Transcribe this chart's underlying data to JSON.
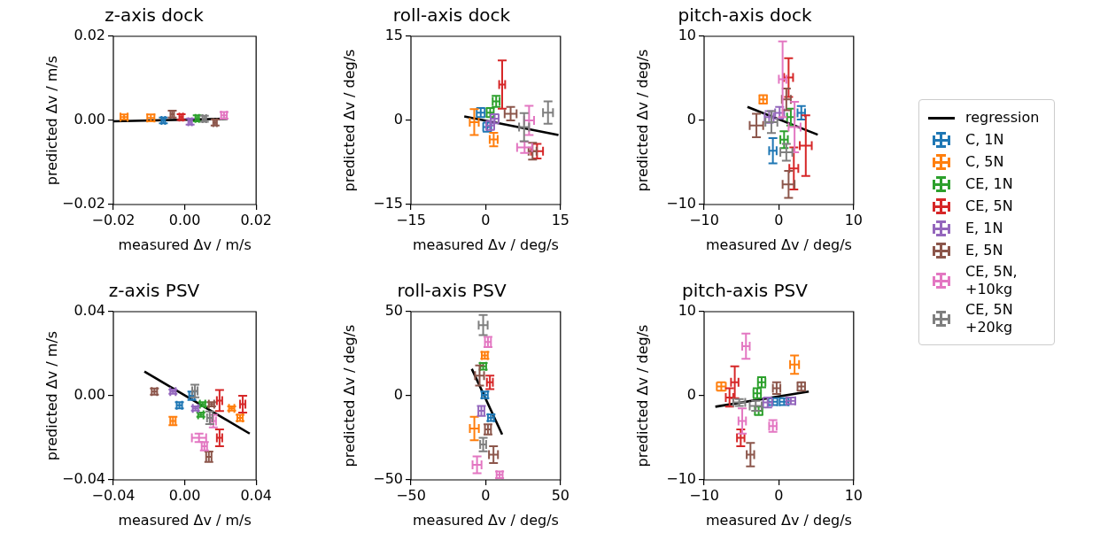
{
  "chart_data": [
    {
      "type": "scatter",
      "title": "z-axis dock",
      "xlabel": "measured Δv / m/s",
      "ylabel": "predicted Δv / m/s",
      "xlim": [
        -0.02,
        0.02
      ],
      "ylim": [
        -0.02,
        0.02
      ],
      "xticks": [
        {
          "value": -0.02,
          "label": "−0.02"
        },
        {
          "value": 0,
          "label": "0.00"
        },
        {
          "value": 0.02,
          "label": "0.02"
        }
      ],
      "yticks": [
        {
          "value": -0.02,
          "label": "−0.02"
        },
        {
          "value": 0,
          "label": "0.00"
        },
        {
          "value": 0.02,
          "label": "0.02"
        }
      ],
      "legend": "right",
      "series": [
        {
          "name": "regression",
          "type": "line",
          "color": "#000000",
          "x": [
            -0.02,
            0.012
          ],
          "values": [
            -0.0002,
            0.0004
          ]
        },
        {
          "name": "C, 1N",
          "color": "#1f77b4",
          "x": [
            -0.006
          ],
          "values": [
            0
          ],
          "errors": [
            0.0007
          ],
          "xerrors": [
            0.0005
          ]
        },
        {
          "name": "C, 5N",
          "color": "#ff7f0e",
          "x": [
            -0.017,
            -0.0095
          ],
          "values": [
            0.0008,
            0.0006
          ],
          "errors": [
            0.0006,
            0.0008
          ],
          "xerrors": [
            0.001,
            0.001
          ]
        },
        {
          "name": "CE, 1N",
          "color": "#2ca02c",
          "x": [
            0.0035
          ],
          "values": [
            0.0005
          ],
          "errors": [
            0.0007
          ],
          "xerrors": [
            0.0005
          ]
        },
        {
          "name": "CE, 5N",
          "color": "#d62728",
          "x": [
            -0.001
          ],
          "values": [
            0.0008
          ],
          "errors": [
            0.0007
          ],
          "xerrors": [
            0.0005
          ]
        },
        {
          "name": "E, 1N",
          "color": "#9467bd",
          "x": [
            0.0015
          ],
          "values": [
            -0.0003
          ],
          "errors": [
            0.0007
          ],
          "xerrors": [
            0.0005
          ]
        },
        {
          "name": "E, 5N",
          "color": "#8c564b",
          "x": [
            -0.0035,
            0.0085
          ],
          "values": [
            0.0015,
            -0.0005
          ],
          "errors": [
            0.0008,
            0.0007
          ],
          "xerrors": [
            0.0005,
            0.0005
          ]
        },
        {
          "name": "CE, 5N, +10kg",
          "color": "#e377c2",
          "x": [
            0.011
          ],
          "values": [
            0.0012
          ],
          "errors": [
            0.0008
          ],
          "xerrors": [
            0.0008
          ]
        },
        {
          "name": "CE, 5N +20kg",
          "color": "#7f7f7f",
          "x": [
            0.0055
          ],
          "values": [
            0.0004
          ],
          "errors": [
            0.0007
          ],
          "xerrors": [
            0.0005
          ]
        }
      ]
    },
    {
      "type": "scatter",
      "title": "roll-axis dock",
      "xlabel": "measured Δv / deg/s",
      "ylabel": "predicted Δv / deg/s",
      "xlim": [
        -15,
        15
      ],
      "ylim": [
        -15,
        15
      ],
      "xticks": [
        {
          "value": -15,
          "label": "−15"
        },
        0,
        15
      ],
      "yticks": [
        {
          "value": -15,
          "label": "−15"
        },
        0,
        15
      ],
      "series": [
        {
          "type": "line",
          "color": "#000000",
          "x": [
            -4.3,
            14.6
          ],
          "values": [
            0.7,
            -2.6
          ]
        },
        {
          "color": "#1f77b4",
          "x": [
            -1.0,
            0.3
          ],
          "values": [
            1.4,
            -1.2
          ],
          "errors": [
            0.8,
            0.8
          ],
          "xerrors": [
            0.8,
            0.8
          ]
        },
        {
          "color": "#ff7f0e",
          "x": [
            -2.3,
            1.6
          ],
          "values": [
            -0.3,
            -3.4
          ],
          "errors": [
            2.3,
            1.2
          ],
          "xerrors": [
            0.9,
            0.8
          ]
        },
        {
          "color": "#2ca02c",
          "x": [
            2.1,
            0.9
          ],
          "values": [
            3.4,
            1.4
          ],
          "errors": [
            1.0,
            0.8
          ],
          "xerrors": [
            0.7,
            0.7
          ]
        },
        {
          "color": "#d62728",
          "x": [
            3.3,
            10.3
          ],
          "values": [
            6.4,
            -5.5
          ],
          "errors": [
            4.3,
            1.3
          ],
          "xerrors": [
            0.6,
            1.2
          ]
        },
        {
          "color": "#9467bd",
          "x": [
            1.8,
            0.9
          ],
          "values": [
            0.3,
            -0.9
          ],
          "errors": [
            0.8,
            0.8
          ],
          "xerrors": [
            0.8,
            0.8
          ]
        },
        {
          "color": "#8c564b",
          "x": [
            5.0,
            9.4
          ],
          "values": [
            1.2,
            -5.5
          ],
          "errors": [
            1.2,
            1.5
          ],
          "xerrors": [
            1.2,
            0.8
          ]
        },
        {
          "color": "#e377c2",
          "x": [
            8.7,
            7.8
          ],
          "values": [
            0,
            -4.8
          ],
          "errors": [
            2.6,
            1.0
          ],
          "xerrors": [
            1.0,
            1.5
          ]
        },
        {
          "color": "#7f7f7f",
          "x": [
            12.5,
            7.7
          ],
          "values": [
            1.4,
            -1.2
          ],
          "errors": [
            2.0,
            2.5
          ],
          "xerrors": [
            1.0,
            1.0
          ]
        }
      ]
    },
    {
      "type": "scatter",
      "title": "pitch-axis dock",
      "xlabel": "measured Δv / deg/s",
      "ylabel": "predicted Δv / deg/s",
      "xlim": [
        -10,
        10
      ],
      "ylim": [
        -10,
        10
      ],
      "xticks": [
        {
          "value": -10,
          "label": "−10"
        },
        0,
        10
      ],
      "yticks": [
        {
          "value": -10,
          "label": "−10"
        },
        0,
        10
      ],
      "series": [
        {
          "type": "line",
          "color": "#000000",
          "x": [
            -4.2,
            5.2
          ],
          "values": [
            1.6,
            -1.7
          ]
        },
        {
          "color": "#1f77b4",
          "x": [
            3.0,
            -0.8
          ],
          "values": [
            0.9,
            -3.6
          ],
          "errors": [
            0.8,
            1.5
          ],
          "xerrors": [
            0.5,
            0.5
          ]
        },
        {
          "color": "#ff7f0e",
          "x": [
            -2.1
          ],
          "values": [
            2.5
          ],
          "errors": [
            0.5
          ],
          "xerrors": [
            0.5
          ]
        },
        {
          "color": "#2ca02c",
          "x": [
            1.6,
            0.7
          ],
          "values": [
            0.4,
            -2.3
          ],
          "errors": [
            1.0,
            1.0
          ],
          "xerrors": [
            0.5,
            0.5
          ]
        },
        {
          "color": "#d62728",
          "x": [
            1.3,
            3.6,
            2.0
          ],
          "values": [
            5.1,
            -3.0,
            -5.7
          ],
          "errors": [
            2.3,
            3.6,
            2.5
          ],
          "xerrors": [
            0.6,
            0.8,
            0.6
          ]
        },
        {
          "color": "#9467bd",
          "x": [
            -1.3,
            0.1
          ],
          "values": [
            0.4,
            0.9
          ],
          "errors": [
            0.7,
            0.7
          ],
          "xerrors": [
            0.6,
            0.6
          ]
        },
        {
          "color": "#8c564b",
          "x": [
            -3.0,
            1.0,
            1.3
          ],
          "values": [
            -0.6,
            2.5,
            -7.6
          ],
          "errors": [
            1.4,
            1.3,
            1.6
          ],
          "xerrors": [
            0.9,
            0.6,
            0.8
          ]
        },
        {
          "color": "#e377c2",
          "x": [
            0.5,
            2.1
          ],
          "values": [
            4.9,
            -0.8
          ],
          "errors": [
            4.5,
            3.0
          ],
          "xerrors": [
            0.5,
            0.8
          ]
        },
        {
          "color": "#7f7f7f",
          "x": [
            -1.0,
            1.0
          ],
          "values": [
            -0.2,
            -3.8
          ],
          "errors": [
            1.3,
            1.0
          ],
          "xerrors": [
            0.8,
            0.8
          ]
        }
      ]
    },
    {
      "type": "scatter",
      "title": "z-axis PSV",
      "xlabel": "measured Δv / m/s",
      "ylabel": "predicted Δv / m/s",
      "xlim": [
        -0.04,
        0.04
      ],
      "ylim": [
        -0.04,
        0.04
      ],
      "xticks": [
        {
          "value": -0.04,
          "label": "−0.04"
        },
        {
          "value": 0,
          "label": "0.00"
        },
        {
          "value": 0.04,
          "label": "0.04"
        }
      ],
      "yticks": [
        {
          "value": -0.04,
          "label": "−0.04"
        },
        {
          "value": 0,
          "label": "0.00"
        },
        {
          "value": 0.04,
          "label": "0.04"
        }
      ],
      "series": [
        {
          "type": "line",
          "color": "#000000",
          "x": [
            -0.0226,
            0.0364
          ],
          "values": [
            0.0115,
            -0.018
          ]
        },
        {
          "color": "#1f77b4",
          "x": [
            -0.003,
            0.004
          ],
          "values": [
            -0.0045,
            0
          ],
          "errors": [
            0.0015,
            0.002
          ],
          "xerrors": [
            0.0015,
            0.0015
          ]
        },
        {
          "color": "#ff7f0e",
          "x": [
            -0.0066,
            0.0263,
            0.031
          ],
          "values": [
            -0.012,
            -0.006,
            -0.0105
          ],
          "errors": [
            0.002,
            0.001,
            0.0015
          ],
          "xerrors": [
            0.0015,
            0.0015,
            0.0015
          ]
        },
        {
          "color": "#2ca02c",
          "x": [
            0.009,
            0.01
          ],
          "values": [
            -0.009,
            -0.004
          ],
          "errors": [
            0.001,
            0.001
          ],
          "xerrors": [
            0.0015,
            0.0015
          ]
        },
        {
          "color": "#d62728",
          "x": [
            0.0195,
            0.0325,
            0.0195
          ],
          "values": [
            -0.0023,
            -0.004,
            -0.02
          ],
          "errors": [
            0.005,
            0.004,
            0.004
          ],
          "xerrors": [
            0.0015,
            0.0015,
            0.0015
          ]
        },
        {
          "color": "#9467bd",
          "x": [
            -0.0066,
            0.006
          ],
          "values": [
            0.002,
            -0.006
          ],
          "errors": [
            0.001,
            0.001
          ],
          "xerrors": [
            0.0015,
            0.0015
          ]
        },
        {
          "color": "#8c564b",
          "x": [
            -0.017,
            0.015,
            0.0135
          ],
          "values": [
            0.002,
            -0.004,
            -0.029
          ],
          "errors": [
            0.0015,
            0.001,
            0.0025
          ],
          "xerrors": [
            0.0015,
            0.0015,
            0.0015
          ]
        },
        {
          "color": "#e377c2",
          "x": [
            0.008,
            0.011,
            0.016
          ],
          "values": [
            -0.02,
            -0.024,
            -0.012
          ],
          "errors": [
            0.002,
            0.002,
            0.003
          ],
          "xerrors": [
            0.004,
            0.0015,
            0.0015
          ]
        },
        {
          "color": "#7f7f7f",
          "x": [
            0.0057,
            0.014
          ],
          "values": [
            0.0023,
            -0.0105
          ],
          "errors": [
            0.003,
            0.003
          ],
          "xerrors": [
            0.0015,
            0.0015
          ]
        }
      ]
    },
    {
      "type": "scatter",
      "title": "roll-axis PSV",
      "xlabel": "measured Δv / deg/s",
      "ylabel": "predicted Δv / deg/s",
      "xlim": [
        -50,
        50
      ],
      "ylim": [
        -50,
        50
      ],
      "xticks": [
        {
          "value": -50,
          "label": "−50"
        },
        0,
        50
      ],
      "yticks": [
        {
          "value": -50,
          "label": "−50"
        },
        0,
        50
      ],
      "series": [
        {
          "type": "line",
          "color": "#000000",
          "x": [
            -9.3,
            11
          ],
          "values": [
            16,
            -23
          ]
        },
        {
          "color": "#1f77b4",
          "x": [
            -0.6,
            3.5
          ],
          "values": [
            0.5,
            -13
          ],
          "errors": [
            2,
            2
          ],
          "xerrors": [
            2,
            2
          ]
        },
        {
          "color": "#ff7f0e",
          "x": [
            -7.6,
            -0.6
          ],
          "values": [
            -19.5,
            24
          ],
          "errors": [
            7,
            2
          ],
          "xerrors": [
            3,
            2
          ]
        },
        {
          "color": "#2ca02c",
          "x": [
            -1.7
          ],
          "values": [
            17.5
          ],
          "errors": [
            2
          ],
          "xerrors": [
            2
          ]
        },
        {
          "color": "#d62728",
          "x": [
            2.8
          ],
          "values": [
            8
          ],
          "errors": [
            4
          ],
          "xerrors": [
            2
          ]
        },
        {
          "color": "#9467bd",
          "x": [
            -2.9
          ],
          "values": [
            -9
          ],
          "errors": [
            3
          ],
          "xerrors": [
            2
          ]
        },
        {
          "color": "#8c564b",
          "x": [
            5.2,
            1.5,
            -4.1
          ],
          "values": [
            -35,
            -20,
            12
          ],
          "errors": [
            5,
            3,
            6
          ],
          "xerrors": [
            3,
            2,
            3
          ]
        },
        {
          "color": "#e377c2",
          "x": [
            1.5,
            -5.8,
            9.3
          ],
          "values": [
            32,
            -41,
            -47
          ],
          "errors": [
            3,
            5,
            2
          ],
          "xerrors": [
            2,
            3,
            2
          ]
        },
        {
          "color": "#7f7f7f",
          "x": [
            -1.7,
            -1.7
          ],
          "values": [
            42,
            -29
          ],
          "errors": [
            6,
            4
          ],
          "xerrors": [
            3,
            2
          ]
        }
      ]
    },
    {
      "type": "scatter",
      "title": "pitch-axis PSV",
      "xlabel": "measured Δv / deg/s",
      "ylabel": "predicted Δv / deg/s",
      "xlim": [
        -10,
        10
      ],
      "ylim": [
        -10,
        10
      ],
      "xticks": [
        {
          "value": -10,
          "label": "−10"
        },
        0,
        10
      ],
      "yticks": [
        {
          "value": -10,
          "label": "−10"
        },
        0,
        10
      ],
      "series": [
        {
          "type": "line",
          "color": "#000000",
          "x": [
            -8.5,
            4.0
          ],
          "values": [
            -1.3,
            0.5
          ]
        },
        {
          "color": "#1f77b4",
          "x": [
            0.7,
            -0.8
          ],
          "values": [
            -0.7,
            -0.7
          ],
          "errors": [
            0.4,
            0.4
          ],
          "xerrors": [
            0.6,
            0.6
          ]
        },
        {
          "color": "#ff7f0e",
          "x": [
            2.1,
            -7.7
          ],
          "values": [
            3.7,
            1.1
          ],
          "errors": [
            1.1,
            0.5
          ],
          "xerrors": [
            0.6,
            0.6
          ]
        },
        {
          "color": "#2ca02c",
          "x": [
            -2.3,
            -2.9,
            -2.7
          ],
          "values": [
            1.6,
            0.3,
            -1.8
          ],
          "errors": [
            0.6,
            0.6,
            0.5
          ],
          "xerrors": [
            0.5,
            0.5,
            0.5
          ]
        },
        {
          "color": "#d62728",
          "x": [
            -5.9,
            -6.6,
            -5.1
          ],
          "values": [
            1.6,
            -0.2,
            -5.0
          ],
          "errors": [
            1.9,
            1.1,
            1.0
          ],
          "xerrors": [
            0.5,
            0.5,
            0.5
          ]
        },
        {
          "color": "#9467bd",
          "x": [
            1.6,
            -1.5
          ],
          "values": [
            -0.6,
            -0.8
          ],
          "errors": [
            0.4,
            0.6
          ],
          "xerrors": [
            0.6,
            0.6
          ]
        },
        {
          "color": "#8c564b",
          "x": [
            3.0,
            -0.3,
            -3.8
          ],
          "values": [
            1.1,
            0.9,
            -7.0
          ],
          "errors": [
            0.5,
            0.7,
            1.4
          ],
          "xerrors": [
            0.5,
            0.5,
            0.5
          ]
        },
        {
          "color": "#e377c2",
          "x": [
            -4.4,
            -0.8,
            -4.9
          ],
          "values": [
            5.9,
            -3.6,
            -3.0
          ],
          "errors": [
            1.5,
            0.7,
            1.5
          ],
          "xerrors": [
            0.5,
            0.5,
            0.5
          ]
        },
        {
          "color": "#7f7f7f",
          "x": [
            -5.3,
            -3.1
          ],
          "values": [
            -0.8,
            -1.2
          ],
          "errors": [
            0.4,
            0.6
          ],
          "xerrors": [
            0.8,
            0.8
          ]
        }
      ]
    }
  ]
}
